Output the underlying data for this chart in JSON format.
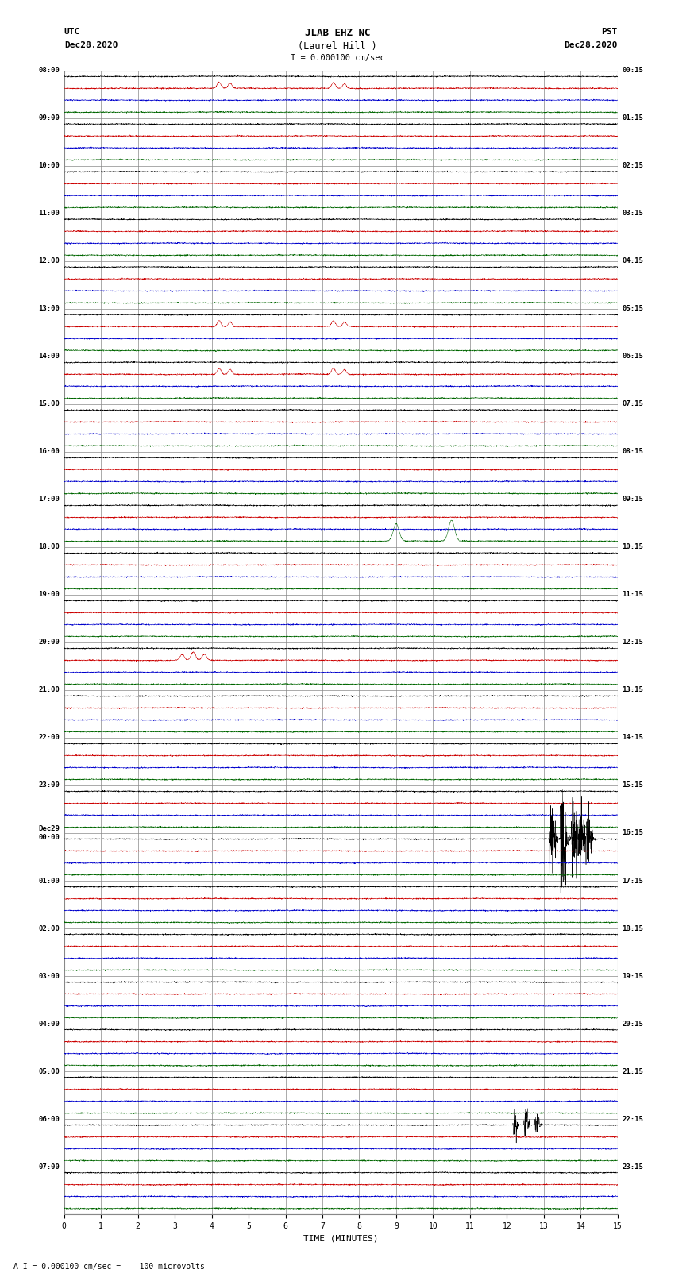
{
  "title_line1": "JLAB EHZ NC",
  "title_line2": "(Laurel Hill )",
  "scale_label": "I = 0.000100 cm/sec",
  "left_header": "UTC\nDec28,2020",
  "right_header": "PST\nDec28,2020",
  "xlabel": "TIME (MINUTES)",
  "footer": "A I = 0.000100 cm/sec =    100 microvolts",
  "background_color": "#ffffff",
  "fig_width": 8.5,
  "fig_height": 16.13,
  "dpi": 100,
  "num_hour_rows": 24,
  "row_colors": [
    "#000000",
    "#cc0000",
    "#0000cc",
    "#006600"
  ],
  "minutes_per_row": 15,
  "grid_color": "#888888",
  "grid_linewidth": 0.5,
  "trace_linewidth": 0.35,
  "noise_amplitude": 0.025,
  "left_labels_utc": [
    "08:00",
    "09:00",
    "10:00",
    "11:00",
    "12:00",
    "13:00",
    "14:00",
    "15:00",
    "16:00",
    "17:00",
    "18:00",
    "19:00",
    "20:00",
    "21:00",
    "22:00",
    "23:00",
    "Dec29\n00:00",
    "01:00",
    "02:00",
    "03:00",
    "04:00",
    "05:00",
    "06:00",
    "07:00"
  ],
  "right_labels_pst": [
    "00:15",
    "01:15",
    "02:15",
    "03:15",
    "04:15",
    "05:15",
    "06:15",
    "07:15",
    "08:15",
    "09:15",
    "10:15",
    "11:15",
    "12:15",
    "13:15",
    "14:15",
    "15:15",
    "16:15",
    "17:15",
    "18:15",
    "19:15",
    "20:15",
    "21:15",
    "22:15",
    "23:15"
  ],
  "event_rows_green": [
    9
  ],
  "event_green_minutes": [
    9.0,
    10.5
  ],
  "event_green_amps": [
    1.8,
    2.2
  ],
  "event_row_black_large": 16,
  "event_black_large_minutes": [
    13.2,
    13.5,
    13.8,
    14.0,
    14.2
  ],
  "event_black_large_amps": [
    1.2,
    1.8,
    1.5,
    1.0,
    0.8
  ],
  "event_row_black_medium": 22,
  "event_black_medium_minutes": [
    12.2,
    12.5,
    12.8
  ],
  "event_black_medium_amps": [
    0.6,
    0.9,
    0.7
  ],
  "event_row_red_small": [
    0,
    5,
    6
  ],
  "event_red_minutes": [
    4.2,
    4.5,
    7.3,
    7.6
  ],
  "event_red_amps": [
    0.5,
    0.4,
    0.5,
    0.4
  ],
  "event_row_red2": 12,
  "event_red2_minutes": [
    3.2,
    3.5,
    3.8
  ],
  "event_red2_amps": [
    0.5,
    0.7,
    0.5
  ]
}
